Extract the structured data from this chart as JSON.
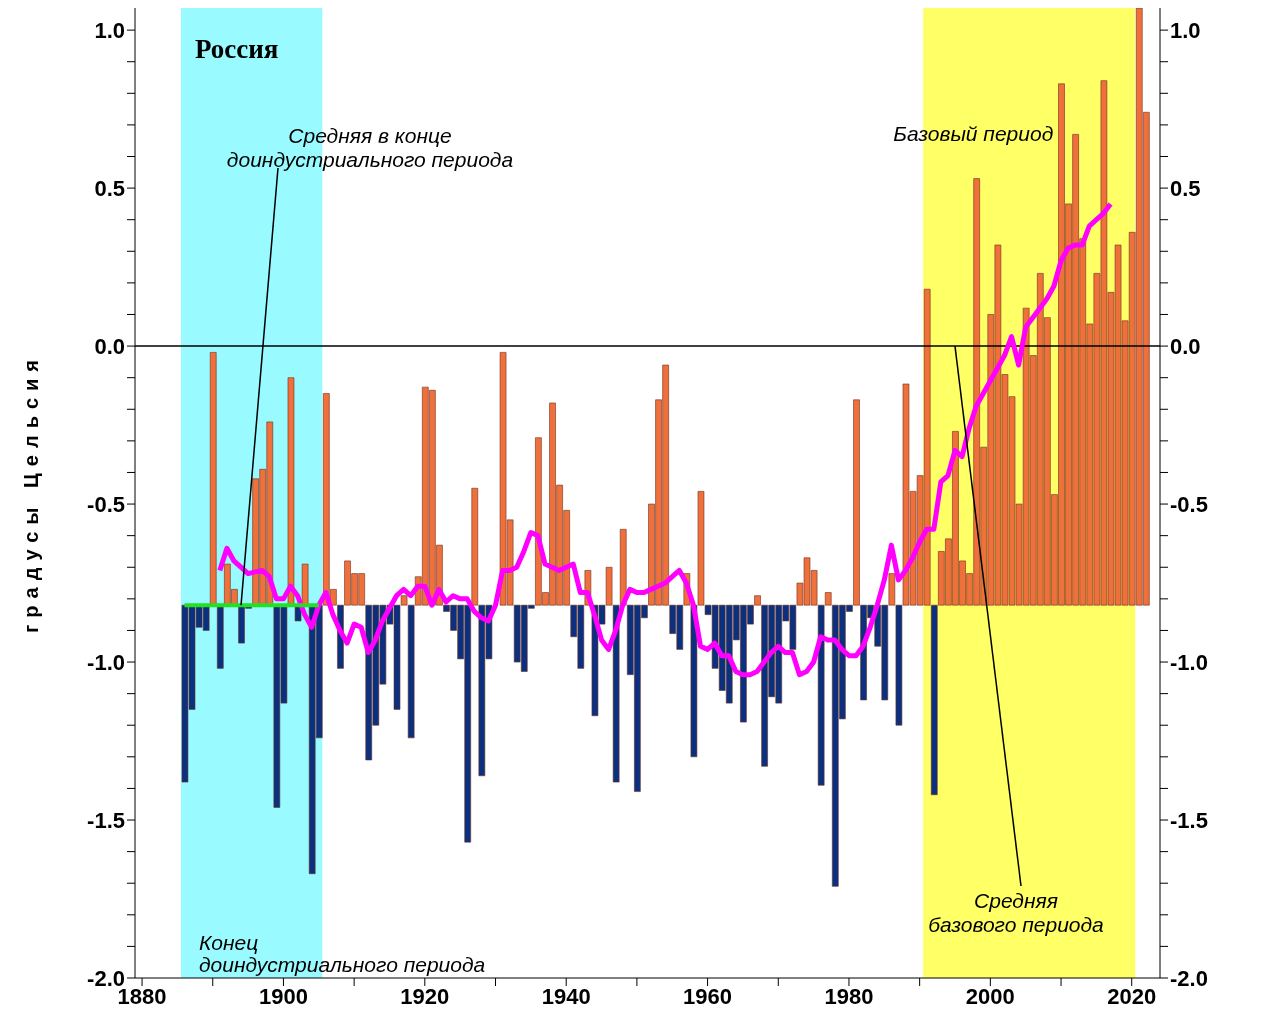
{
  "chart_data": {
    "type": "bar",
    "title": "Россия",
    "ylabel": "градусы Цельсия",
    "x": [
      1886,
      1887,
      1888,
      1889,
      1890,
      1891,
      1892,
      1893,
      1894,
      1895,
      1896,
      1897,
      1898,
      1899,
      1900,
      1901,
      1902,
      1903,
      1904,
      1905,
      1906,
      1907,
      1908,
      1909,
      1910,
      1911,
      1912,
      1913,
      1914,
      1915,
      1916,
      1917,
      1918,
      1919,
      1920,
      1921,
      1922,
      1923,
      1924,
      1925,
      1926,
      1927,
      1928,
      1929,
      1930,
      1931,
      1932,
      1933,
      1934,
      1935,
      1936,
      1937,
      1938,
      1939,
      1940,
      1941,
      1942,
      1943,
      1944,
      1945,
      1946,
      1947,
      1948,
      1949,
      1950,
      1951,
      1952,
      1953,
      1954,
      1955,
      1956,
      1957,
      1958,
      1959,
      1960,
      1961,
      1962,
      1963,
      1964,
      1965,
      1966,
      1967,
      1968,
      1969,
      1970,
      1971,
      1972,
      1973,
      1974,
      1975,
      1976,
      1977,
      1978,
      1979,
      1980,
      1981,
      1982,
      1983,
      1984,
      1985,
      1986,
      1987,
      1988,
      1989,
      1990,
      1991,
      1992,
      1993,
      1994,
      1995,
      1996,
      1997,
      1998,
      1999,
      2000,
      2001,
      2002,
      2003,
      2004,
      2005,
      2006,
      2007,
      2008,
      2009,
      2010,
      2011,
      2012,
      2013,
      2014,
      2015,
      2016,
      2017,
      2018,
      2019,
      2020,
      2021,
      2022
    ],
    "series": [
      {
        "color": "#f0703c",
        "base": [
          null,
          null,
          null,
          null,
          -0.82,
          null,
          -0.82,
          -0.82,
          null,
          null,
          -0.82,
          -0.82,
          -0.82,
          null,
          null,
          -0.82,
          null,
          -0.82,
          null,
          null,
          -0.82,
          -0.82,
          null,
          -0.82,
          -0.82,
          -0.82,
          null,
          null,
          null,
          null,
          null,
          -0.82,
          null,
          -0.82,
          -0.82,
          -0.82,
          -0.82,
          null,
          null,
          null,
          null,
          -0.82,
          null,
          null,
          null,
          -0.82,
          -0.82,
          null,
          null,
          null,
          -0.82,
          -0.82,
          -0.82,
          -0.82,
          -0.82,
          null,
          null,
          -0.82,
          null,
          null,
          -0.82,
          null,
          -0.82,
          null,
          null,
          null,
          -0.82,
          -0.82,
          -0.82,
          null,
          null,
          -0.82,
          null,
          -0.82,
          null,
          null,
          null,
          null,
          null,
          null,
          null,
          -0.82,
          null,
          null,
          null,
          null,
          null,
          -0.82,
          -0.82,
          -0.82,
          null,
          -0.82,
          null,
          null,
          null,
          -0.82,
          null,
          null,
          null,
          null,
          -0.82,
          null,
          -0.82,
          -0.82,
          -0.82,
          -0.82,
          null,
          -0.82,
          -0.82,
          -0.82,
          -0.82,
          -0.82,
          -0.82,
          -0.82,
          -0.82,
          -0.82,
          -0.82,
          -0.82,
          -0.82,
          -0.82,
          -0.82,
          -0.82,
          -0.82,
          -0.82,
          -0.82,
          -0.82,
          -0.82,
          -0.82,
          -0.82,
          -0.82,
          -0.82,
          -0.82,
          -0.82,
          -0.82,
          -0.82,
          -0.82,
          -0.82
        ],
        "values": [
          null,
          null,
          null,
          null,
          0.8,
          null,
          0.13,
          0.05,
          null,
          null,
          0.4,
          0.43,
          0.58,
          null,
          null,
          0.72,
          null,
          0.13,
          null,
          null,
          0.67,
          0.05,
          null,
          0.14,
          0.1,
          0.1,
          null,
          null,
          null,
          null,
          null,
          0.03,
          null,
          0.09,
          0.69,
          0.68,
          0.19,
          null,
          null,
          null,
          null,
          0.37,
          null,
          null,
          null,
          0.8,
          0.27,
          null,
          null,
          null,
          0.53,
          0.04,
          0.64,
          0.38,
          0.3,
          null,
          null,
          0.11,
          null,
          null,
          0.12,
          null,
          0.24,
          null,
          null,
          null,
          0.32,
          0.65,
          0.76,
          null,
          null,
          0.1,
          null,
          0.36,
          null,
          null,
          null,
          null,
          null,
          null,
          null,
          0.03,
          null,
          null,
          null,
          null,
          null,
          0.07,
          0.15,
          0.11,
          null,
          0.04,
          null,
          null,
          null,
          0.65,
          null,
          null,
          null,
          null,
          0.1,
          null,
          0.7,
          0.36,
          0.41,
          1.0,
          null,
          0.17,
          0.21,
          0.55,
          0.14,
          0.1,
          1.35,
          0.5,
          0.92,
          1.14,
          0.73,
          0.66,
          0.32,
          0.94,
          0.79,
          1.05,
          0.91,
          0.35,
          1.65,
          1.27,
          1.49,
          1.16,
          0.89,
          1.05,
          1.66,
          0.99,
          1.14,
          0.9,
          1.18,
          1.89,
          1.56
        ]
      },
      {
        "color": "#0b3080",
        "base": [
          -0.82,
          -0.82,
          -0.82,
          -0.82,
          null,
          -0.82,
          null,
          null,
          -0.82,
          -0.82,
          null,
          null,
          null,
          -0.82,
          -0.82,
          null,
          -0.82,
          null,
          -0.82,
          -0.82,
          null,
          null,
          -0.82,
          null,
          null,
          null,
          -0.82,
          -0.82,
          -0.82,
          -0.82,
          -0.82,
          null,
          -0.82,
          null,
          null,
          null,
          null,
          -0.82,
          -0.82,
          -0.82,
          -0.82,
          null,
          -0.82,
          -0.82,
          null,
          null,
          null,
          -0.82,
          -0.82,
          -0.82,
          null,
          null,
          null,
          null,
          null,
          -0.82,
          -0.82,
          null,
          -0.82,
          -0.82,
          null,
          -0.82,
          null,
          -0.82,
          -0.82,
          -0.82,
          null,
          null,
          null,
          -0.82,
          -0.82,
          null,
          -0.82,
          null,
          -0.82,
          -0.82,
          -0.82,
          -0.82,
          -0.82,
          -0.82,
          -0.82,
          null,
          -0.82,
          -0.82,
          -0.82,
          -0.82,
          -0.82,
          null,
          null,
          null,
          -0.82,
          null,
          -0.82,
          -0.82,
          -0.82,
          null,
          -0.82,
          -0.82,
          -0.82,
          -0.82,
          null,
          -0.82,
          null,
          null,
          null,
          null,
          -0.82,
          null,
          null,
          null,
          null,
          null,
          null,
          null,
          null,
          null,
          null,
          null,
          null,
          null,
          null,
          null,
          null,
          null,
          null,
          null,
          null,
          null,
          null,
          null,
          null,
          null,
          null,
          null,
          null,
          null,
          null
        ],
        "values": [
          -0.56,
          -0.33,
          -0.07,
          -0.08,
          null,
          -0.2,
          null,
          null,
          -0.12,
          -0.01,
          null,
          null,
          null,
          -0.64,
          -0.31,
          null,
          -0.05,
          null,
          -0.85,
          -0.42,
          null,
          null,
          -0.2,
          null,
          null,
          null,
          -0.49,
          -0.38,
          -0.25,
          -0.06,
          -0.33,
          null,
          -0.42,
          null,
          null,
          null,
          null,
          -0.02,
          -0.08,
          -0.17,
          -0.75,
          null,
          -0.54,
          -0.17,
          null,
          null,
          null,
          -0.18,
          -0.21,
          -0.01,
          null,
          null,
          null,
          null,
          null,
          -0.1,
          -0.2,
          null,
          -0.35,
          -0.06,
          null,
          -0.56,
          null,
          -0.22,
          -0.59,
          -0.04,
          null,
          null,
          null,
          -0.09,
          -0.14,
          null,
          -0.48,
          null,
          -0.03,
          -0.2,
          -0.27,
          -0.31,
          -0.11,
          -0.37,
          -0.06,
          null,
          -0.51,
          -0.29,
          -0.31,
          -0.05,
          -0.14,
          null,
          null,
          null,
          -0.57,
          null,
          -0.89,
          -0.36,
          -0.02,
          null,
          -0.3,
          -0.04,
          -0.13,
          -0.3,
          null,
          -0.38,
          null,
          null,
          null,
          null,
          -0.6,
          null,
          null,
          null,
          null,
          null,
          null,
          null,
          null,
          null,
          null,
          null,
          null,
          null,
          null,
          null,
          null,
          null,
          null,
          null,
          null,
          null,
          null,
          null,
          null,
          null,
          null,
          null,
          null,
          null,
          null
        ]
      },
      {
        "type": "line",
        "color": "#ff00ff",
        "x": [
          1891,
          1892,
          1893,
          1895,
          1897,
          1898,
          1899,
          1900,
          1901,
          1902,
          1903,
          1904,
          1905,
          1906,
          1907,
          1908,
          1909,
          1910,
          1911,
          1912,
          1913,
          1914,
          1915,
          1916,
          1917,
          1918,
          1919,
          1920,
          1921,
          1922,
          1923,
          1924,
          1925,
          1926,
          1927,
          1928,
          1929,
          1930,
          1931,
          1932,
          1933,
          1934,
          1935,
          1936,
          1937,
          1938,
          1939,
          1940,
          1941,
          1942,
          1943,
          1944,
          1945,
          1946,
          1947,
          1948,
          1949,
          1950,
          1951,
          1952,
          1953,
          1954,
          1955,
          1956,
          1957,
          1958,
          1959,
          1960,
          1961,
          1962,
          1963,
          1964,
          1965,
          1966,
          1967,
          1968,
          1969,
          1970,
          1971,
          1972,
          1973,
          1974,
          1975,
          1976,
          1977,
          1978,
          1979,
          1980,
          1981,
          1982,
          1983,
          1984,
          1985,
          1986,
          1987,
          1988,
          1989,
          1990,
          1991,
          1992,
          1993,
          1994,
          1995,
          1996,
          1997,
          1998,
          1999,
          2000,
          2001,
          2002,
          2003,
          2004,
          2005,
          2006,
          2007,
          2008,
          2009,
          2010,
          2011,
          2012,
          2013,
          2014,
          2015,
          2016,
          2017
        ],
        "values": [
          -0.71,
          -0.64,
          -0.68,
          -0.72,
          -0.71,
          -0.73,
          -0.8,
          -0.8,
          -0.76,
          -0.79,
          -0.85,
          -0.89,
          -0.82,
          -0.78,
          -0.85,
          -0.9,
          -0.94,
          -0.88,
          -0.89,
          -0.97,
          -0.93,
          -0.87,
          -0.83,
          -0.79,
          -0.77,
          -0.79,
          -0.76,
          -0.76,
          -0.82,
          -0.77,
          -0.81,
          -0.79,
          -0.8,
          -0.8,
          -0.84,
          -0.86,
          -0.87,
          -0.82,
          -0.71,
          -0.71,
          -0.7,
          -0.65,
          -0.59,
          -0.6,
          -0.69,
          -0.7,
          -0.71,
          -0.7,
          -0.69,
          -0.78,
          -0.78,
          -0.85,
          -0.93,
          -0.96,
          -0.9,
          -0.82,
          -0.77,
          -0.78,
          -0.78,
          -0.77,
          -0.76,
          -0.75,
          -0.73,
          -0.71,
          -0.75,
          -0.82,
          -0.95,
          -0.96,
          -0.94,
          -0.98,
          -0.98,
          -1.03,
          -1.04,
          -1.04,
          -1.03,
          -1.0,
          -0.97,
          -0.95,
          -0.97,
          -0.97,
          -1.04,
          -1.03,
          -1.0,
          -0.92,
          -0.93,
          -0.93,
          -0.96,
          -0.98,
          -0.98,
          -0.95,
          -0.89,
          -0.82,
          -0.74,
          -0.63,
          -0.74,
          -0.71,
          -0.67,
          -0.62,
          -0.58,
          -0.58,
          -0.43,
          -0.41,
          -0.33,
          -0.35,
          -0.26,
          -0.19,
          -0.15,
          -0.11,
          -0.07,
          -0.03,
          0.03,
          -0.06,
          0.06,
          0.09,
          0.12,
          0.15,
          0.19,
          0.27,
          0.31,
          0.32,
          0.32,
          0.38,
          0.4,
          0.42,
          0.45
        ]
      },
      {
        "type": "line",
        "color": "#22e022",
        "x": [
          1886,
          1905
        ],
        "values": [
          -0.82,
          -0.82
        ]
      }
    ],
    "xlim": [
      1879,
      2024
    ],
    "xticks": [
      1880,
      {
        "value": 1890,
        "label": null
      },
      1900,
      {
        "value": 1910,
        "label": null
      },
      1920,
      {
        "value": 1930,
        "label": null
      },
      1940,
      {
        "value": 1950,
        "label": null
      },
      1960,
      {
        "value": 1970,
        "label": null
      },
      1980,
      {
        "value": 1990,
        "label": null
      },
      2000,
      {
        "value": 2010,
        "label": null
      },
      2020
    ],
    "ylim": [
      -2.0,
      1.07
    ],
    "yticks": [
      {
        "value": -2.0,
        "label": "-2.0"
      },
      {
        "value": -1.9,
        "label": null
      },
      {
        "value": -1.8,
        "label": null
      },
      {
        "value": -1.7,
        "label": null
      },
      {
        "value": -1.6,
        "label": null
      },
      {
        "value": -1.5,
        "label": "-1.5"
      },
      {
        "value": -1.4,
        "label": null
      },
      {
        "value": -1.3,
        "label": null
      },
      {
        "value": -1.2,
        "label": null
      },
      {
        "value": -1.1,
        "label": null
      },
      {
        "value": -1.0,
        "label": "-1.0"
      },
      {
        "value": -0.9,
        "label": null
      },
      {
        "value": -0.8,
        "label": null
      },
      {
        "value": -0.7,
        "label": null
      },
      {
        "value": -0.6,
        "label": null
      },
      {
        "value": -0.5,
        "label": "-0.5"
      },
      {
        "value": -0.4,
        "label": null
      },
      {
        "value": -0.3,
        "label": null
      },
      {
        "value": -0.2,
        "label": null
      },
      {
        "value": -0.1,
        "label": null
      },
      {
        "value": 0.0,
        "label": "0.0"
      },
      {
        "value": 0.1,
        "label": null
      },
      {
        "value": 0.2,
        "label": null
      },
      {
        "value": 0.3,
        "label": null
      },
      {
        "value": 0.4,
        "label": null
      },
      {
        "value": 0.5,
        "label": "0.5"
      },
      {
        "value": 0.6,
        "label": null
      },
      {
        "value": 0.7,
        "label": null
      },
      {
        "value": 0.8,
        "label": null
      },
      {
        "value": 0.9,
        "label": null
      },
      {
        "value": 1.0,
        "label": "1.0"
      }
    ],
    "y2lim": [
      -2.0,
      1.07
    ],
    "y2ticks": [
      {
        "value": -2.0,
        "label": "-2.0"
      },
      {
        "value": -1.9,
        "label": null
      },
      {
        "value": -1.8,
        "label": null
      },
      {
        "value": -1.7,
        "label": null
      },
      {
        "value": -1.6,
        "label": null
      },
      {
        "value": -1.5,
        "label": "-1.5"
      },
      {
        "value": -1.4,
        "label": null
      },
      {
        "value": -1.3,
        "label": null
      },
      {
        "value": -1.2,
        "label": null
      },
      {
        "value": -1.1,
        "label": null
      },
      {
        "value": -1.0,
        "label": "-1.0"
      },
      {
        "value": -0.9,
        "label": null
      },
      {
        "value": -0.8,
        "label": null
      },
      {
        "value": -0.7,
        "label": null
      },
      {
        "value": -0.6,
        "label": null
      },
      {
        "value": -0.5,
        "label": "-0.5"
      },
      {
        "value": -0.4,
        "label": null
      },
      {
        "value": -0.3,
        "label": null
      },
      {
        "value": -0.2,
        "label": null
      },
      {
        "value": -0.1,
        "label": null
      },
      {
        "value": 0.0,
        "label": "0.0"
      },
      {
        "value": 0.1,
        "label": null
      },
      {
        "value": 0.2,
        "label": null
      },
      {
        "value": 0.3,
        "label": null
      },
      {
        "value": 0.4,
        "label": null
      },
      {
        "value": 0.5,
        "label": "0.5"
      },
      {
        "value": 0.6,
        "label": null
      },
      {
        "value": 0.7,
        "label": null
      },
      {
        "value": 0.8,
        "label": null
      },
      {
        "value": 0.9,
        "label": null
      },
      {
        "value": 1.0,
        "label": "1.0"
      }
    ],
    "bands": [
      {
        "axis": "x",
        "from": 1885.5,
        "to": 1905.5,
        "label": "Конец доиндустриального периода",
        "color": "#99fbff"
      },
      {
        "axis": "x",
        "from": 1990.5,
        "to": 2020.5,
        "label": "Базовый период",
        "color": "#ffff66"
      }
    ],
    "ref_lines": [
      {
        "axis": "y",
        "value": 0,
        "color": "#000000"
      }
    ],
    "annotations": [
      {
        "text": "Средняя в конце доиндустриального периода",
        "x": 1894,
        "y": -0.82
      },
      {
        "text": "Средняя базового периода",
        "x": 1995,
        "y": 0
      }
    ]
  }
}
